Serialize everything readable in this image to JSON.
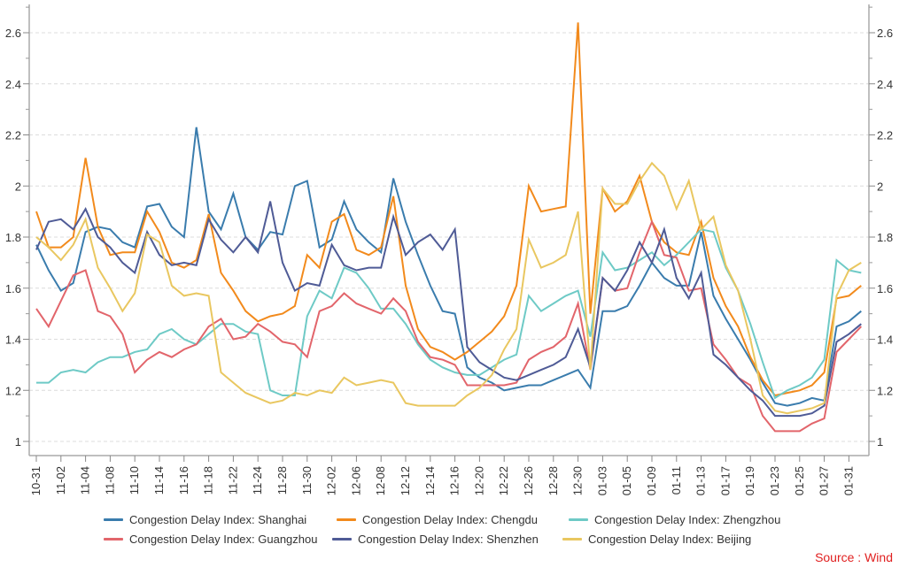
{
  "chart_data": {
    "type": "line",
    "title": "",
    "xlabel": "",
    "ylabel": "",
    "ylim": [
      0.93,
      2.72
    ],
    "yticks": [
      1,
      1.2,
      1.4,
      1.6,
      1.8,
      2,
      2.2,
      2.4,
      2.6
    ],
    "ytick_labels": [
      "1",
      "1.2",
      "1.4",
      "1.6",
      "1.8",
      "2",
      "2.2",
      "2.4",
      "2.6"
    ],
    "dual_y_axis": true,
    "grid": "horizontal dashed",
    "legend_position": "bottom",
    "x_tick_labels": [
      "10-31",
      "",
      "11-02",
      "",
      "11-04",
      "",
      "11-08",
      "",
      "11-10",
      "",
      "11-14",
      "",
      "11-16",
      "",
      "11-18",
      "",
      "11-22",
      "",
      "11-24",
      "",
      "11-28",
      "",
      "11-30",
      "",
      "12-02",
      "",
      "12-06",
      "",
      "12-08",
      "",
      "12-12",
      "",
      "12-14",
      "",
      "12-16",
      "",
      "12-20",
      "",
      "12-22",
      "",
      "12-26",
      "",
      "12-28",
      "",
      "12-30",
      "",
      "01-03",
      "",
      "01-05",
      "",
      "01-09",
      "",
      "01-11",
      "",
      "01-13",
      "",
      "01-17",
      "",
      "01-19",
      "",
      "01-23",
      "",
      "01-25",
      "",
      "01-27",
      "",
      "01-31",
      ""
    ],
    "series": [
      {
        "name": "Congestion Delay Index: Shanghai",
        "color": "#3a7cad",
        "values": [
          1.77,
          1.67,
          1.59,
          1.62,
          1.82,
          1.84,
          1.83,
          1.78,
          1.76,
          1.92,
          1.93,
          1.84,
          1.8,
          2.23,
          1.9,
          1.83,
          1.97,
          1.8,
          1.75,
          1.82,
          1.81,
          2.0,
          2.02,
          1.76,
          1.79,
          1.94,
          1.83,
          1.78,
          1.74,
          2.03,
          1.86,
          1.73,
          1.61,
          1.51,
          1.5,
          1.29,
          1.25,
          1.23,
          1.2,
          1.21,
          1.22,
          1.22,
          1.24,
          1.26,
          1.28,
          1.21,
          1.51,
          1.51,
          1.53,
          1.61,
          1.7,
          1.64,
          1.61,
          1.61,
          1.82,
          1.57,
          1.48,
          1.4,
          1.32,
          1.23,
          1.15,
          1.14,
          1.15,
          1.17,
          1.16,
          1.45,
          1.47,
          1.51
        ]
      },
      {
        "name": "Congestion Delay Index: Chengdu",
        "color": "#f28a1c",
        "values": [
          1.9,
          1.76,
          1.76,
          1.8,
          2.11,
          1.84,
          1.73,
          1.74,
          1.74,
          1.9,
          1.82,
          1.7,
          1.68,
          1.71,
          1.89,
          1.66,
          1.59,
          1.51,
          1.47,
          1.49,
          1.5,
          1.53,
          1.73,
          1.68,
          1.86,
          1.89,
          1.75,
          1.73,
          1.76,
          1.96,
          1.61,
          1.44,
          1.37,
          1.35,
          1.32,
          1.35,
          1.39,
          1.43,
          1.49,
          1.61,
          2.0,
          1.9,
          1.91,
          1.92,
          2.64,
          1.5,
          1.99,
          1.9,
          1.94,
          2.04,
          1.86,
          1.78,
          1.74,
          1.73,
          1.86,
          1.64,
          1.53,
          1.45,
          1.33,
          1.24,
          1.18,
          1.19,
          1.2,
          1.22,
          1.27,
          1.56,
          1.57,
          1.61
        ]
      },
      {
        "name": "Congestion Delay Index: Zhengzhou",
        "color": "#6ecac6",
        "values": [
          1.23,
          1.23,
          1.27,
          1.28,
          1.27,
          1.31,
          1.33,
          1.33,
          1.35,
          1.36,
          1.42,
          1.44,
          1.4,
          1.38,
          1.42,
          1.46,
          1.46,
          1.43,
          1.42,
          1.2,
          1.18,
          1.18,
          1.49,
          1.59,
          1.56,
          1.68,
          1.66,
          1.6,
          1.52,
          1.52,
          1.46,
          1.38,
          1.32,
          1.29,
          1.27,
          1.26,
          1.26,
          1.29,
          1.32,
          1.34,
          1.57,
          1.51,
          1.54,
          1.57,
          1.59,
          1.41,
          1.74,
          1.67,
          1.68,
          1.71,
          1.74,
          1.69,
          1.73,
          1.78,
          1.83,
          1.82,
          1.68,
          1.59,
          1.46,
          1.31,
          1.17,
          1.2,
          1.22,
          1.25,
          1.32,
          1.71,
          1.67,
          1.66
        ]
      },
      {
        "name": "Congestion Delay Index: Guangzhou",
        "color": "#e2656b",
        "values": [
          1.52,
          1.45,
          1.55,
          1.65,
          1.67,
          1.51,
          1.49,
          1.42,
          1.27,
          1.32,
          1.35,
          1.33,
          1.36,
          1.38,
          1.45,
          1.48,
          1.4,
          1.41,
          1.46,
          1.43,
          1.39,
          1.38,
          1.33,
          1.51,
          1.53,
          1.58,
          1.54,
          1.52,
          1.5,
          1.56,
          1.51,
          1.39,
          1.33,
          1.32,
          1.3,
          1.22,
          1.22,
          1.22,
          1.22,
          1.23,
          1.32,
          1.35,
          1.37,
          1.41,
          1.54,
          1.28,
          1.64,
          1.59,
          1.6,
          1.74,
          1.86,
          1.73,
          1.72,
          1.59,
          1.6,
          1.38,
          1.32,
          1.25,
          1.22,
          1.1,
          1.04,
          1.04,
          1.04,
          1.07,
          1.09,
          1.35,
          1.4,
          1.45
        ]
      },
      {
        "name": "Congestion Delay Index: Shenzhen",
        "color": "#4f5b96",
        "values": [
          1.75,
          1.86,
          1.87,
          1.83,
          1.91,
          1.8,
          1.76,
          1.7,
          1.66,
          1.82,
          1.73,
          1.69,
          1.7,
          1.69,
          1.87,
          1.79,
          1.74,
          1.8,
          1.74,
          1.94,
          1.7,
          1.59,
          1.62,
          1.61,
          1.77,
          1.69,
          1.67,
          1.68,
          1.68,
          1.88,
          1.73,
          1.78,
          1.81,
          1.75,
          1.83,
          1.37,
          1.31,
          1.28,
          1.25,
          1.24,
          1.26,
          1.28,
          1.3,
          1.33,
          1.44,
          1.29,
          1.64,
          1.59,
          1.67,
          1.78,
          1.7,
          1.83,
          1.64,
          1.56,
          1.66,
          1.34,
          1.3,
          1.25,
          1.2,
          1.16,
          1.1,
          1.1,
          1.1,
          1.11,
          1.14,
          1.39,
          1.42,
          1.46
        ]
      },
      {
        "name": "Congestion Delay Index: Beijing",
        "color": "#e9c760",
        "values": [
          1.8,
          1.76,
          1.71,
          1.77,
          1.87,
          1.68,
          1.6,
          1.51,
          1.58,
          1.81,
          1.78,
          1.61,
          1.57,
          1.58,
          1.57,
          1.27,
          1.23,
          1.19,
          1.17,
          1.15,
          1.16,
          1.19,
          1.18,
          1.2,
          1.19,
          1.25,
          1.22,
          1.23,
          1.24,
          1.23,
          1.15,
          1.14,
          1.14,
          1.14,
          1.14,
          1.18,
          1.21,
          1.26,
          1.36,
          1.44,
          1.79,
          1.68,
          1.7,
          1.73,
          1.9,
          1.28,
          1.99,
          1.93,
          1.93,
          2.02,
          2.09,
          2.04,
          1.91,
          2.02,
          1.83,
          1.88,
          1.69,
          1.59,
          1.4,
          1.18,
          1.12,
          1.11,
          1.12,
          1.13,
          1.15,
          1.57,
          1.67,
          1.7
        ]
      }
    ],
    "source": "Source : Wind"
  }
}
